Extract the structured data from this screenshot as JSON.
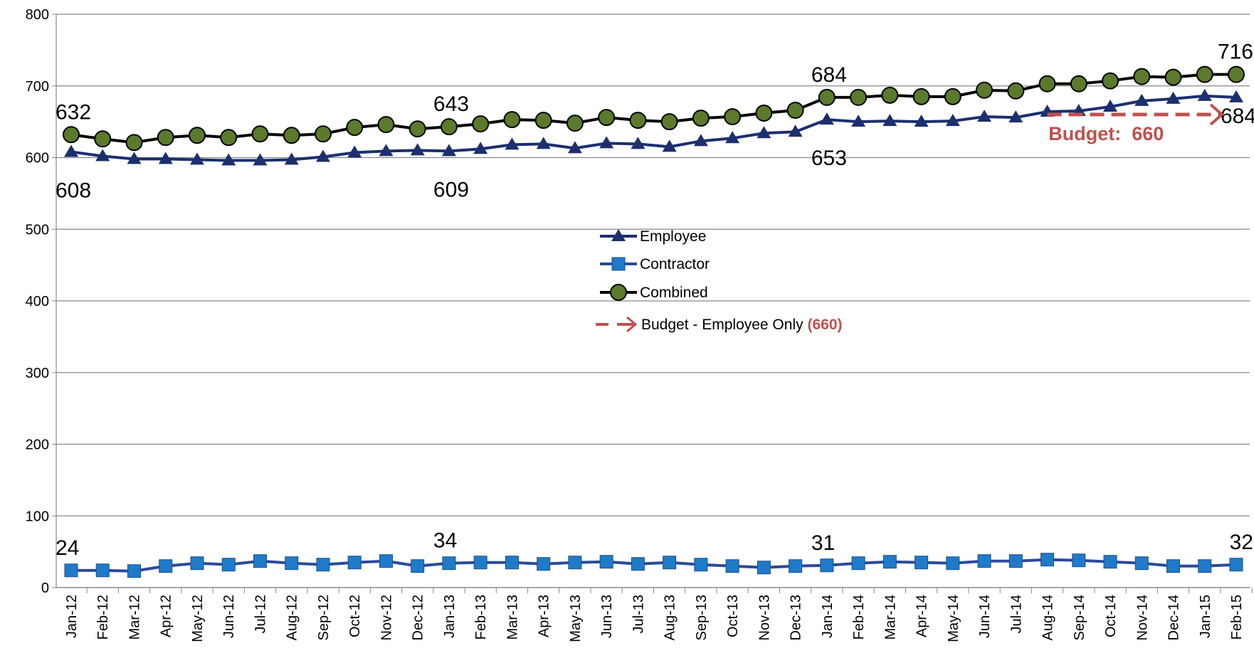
{
  "chart_data": {
    "type": "line",
    "categories": [
      "Jan-12",
      "Feb-12",
      "Mar-12",
      "Apr-12",
      "May-12",
      "Jun-12",
      "Jul-12",
      "Aug-12",
      "Sep-12",
      "Oct-12",
      "Nov-12",
      "Dec-12",
      "Jan-13",
      "Feb-13",
      "Mar-13",
      "Apr-13",
      "May-13",
      "Jun-13",
      "Jul-13",
      "Aug-13",
      "Sep-13",
      "Oct-13",
      "Nov-13",
      "Dec-13",
      "Jan-14",
      "Feb-14",
      "Mar-14",
      "Apr-14",
      "May-14",
      "Jun-14",
      "Jul-14",
      "Aug-14",
      "Sep-14",
      "Oct-14",
      "Nov-14",
      "Dec-14",
      "Jan-15",
      "Feb-15"
    ],
    "series": [
      {
        "name": "Employee",
        "color": "#1c2f6e",
        "marker": "triangle",
        "marker_color": "#1c2f6e",
        "values": [
          608,
          602,
          598,
          598,
          597,
          596,
          596,
          597,
          601,
          607,
          609,
          610,
          609,
          612,
          618,
          619,
          613,
          620,
          619,
          615,
          623,
          627,
          634,
          636,
          653,
          650,
          651,
          650,
          651,
          657,
          656,
          664,
          665,
          671,
          679,
          682,
          686,
          684
        ]
      },
      {
        "name": "Contractor",
        "color": "#2c4a9a",
        "marker": "square",
        "marker_color": "#1f7bc9",
        "values": [
          24,
          24,
          23,
          30,
          34,
          32,
          37,
          34,
          32,
          35,
          37,
          30,
          34,
          35,
          35,
          33,
          35,
          36,
          33,
          35,
          32,
          30,
          28,
          30,
          31,
          34,
          36,
          35,
          34,
          37,
          37,
          39,
          38,
          36,
          34,
          30,
          30,
          32
        ]
      },
      {
        "name": "Combined",
        "color": "#000000",
        "marker": "circle",
        "marker_color": "#5b7a2c",
        "values": [
          632,
          626,
          621,
          628,
          631,
          628,
          633,
          631,
          633,
          642,
          646,
          640,
          643,
          647,
          653,
          652,
          648,
          656,
          652,
          650,
          655,
          657,
          662,
          666,
          684,
          684,
          687,
          685,
          685,
          694,
          693,
          703,
          703,
          707,
          713,
          712,
          716,
          716
        ]
      }
    ],
    "labeled_points": [
      0,
      12,
      24,
      37
    ],
    "budget": {
      "name": "Budget - Employee Only",
      "value": 660,
      "value_label": "(660)",
      "annotation": "Budget:  660",
      "color": "#c0504d",
      "start": "Aug-14",
      "end": "Feb-15"
    },
    "ylim": [
      0,
      800
    ],
    "yticks": [
      0,
      100,
      200,
      300,
      400,
      500,
      600,
      700,
      800
    ],
    "grid": true
  }
}
